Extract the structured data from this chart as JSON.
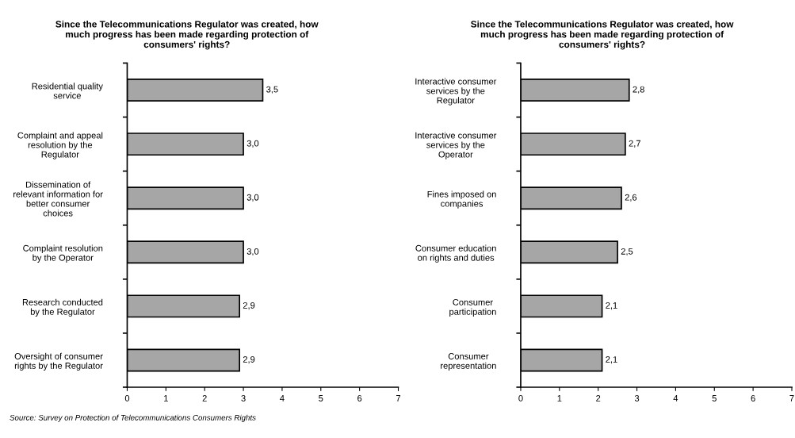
{
  "chart_data": [
    {
      "type": "bar",
      "orientation": "horizontal",
      "title": "Since the Telecommunications Regulator was created, how\nmuch progress has been made regarding protection of\nconsumers' rights?",
      "categories": [
        "Residential quality\nservice",
        "Complaint and appeal\nresolution by the\nRegulator",
        "Dissemination of\nrelevant information for\nbetter consumer\nchoices",
        "Complaint resolution\nby the Operator",
        "Research conducted\nby the Regulator",
        "Oversight of consumer\nrights by the Regulator"
      ],
      "values": [
        3.5,
        3.0,
        3.0,
        3.0,
        2.9,
        2.9
      ],
      "value_labels": [
        "3,5",
        "3,0",
        "3,0",
        "3,0",
        "2,9",
        "2,9"
      ],
      "color": "#a6a6a6",
      "xlim": [
        0,
        7
      ],
      "xticks": [
        0,
        1,
        2,
        3,
        4,
        5,
        6,
        7
      ],
      "grid": false,
      "legend": false,
      "annotations": [
        "Source: Survey on Protection of Telecommunications Consumers Rights"
      ]
    },
    {
      "type": "bar",
      "orientation": "horizontal",
      "title": "Since the Telecommunications Regulator was created, how\nmuch progress has been made regarding protection of\nconsumers' rights?",
      "categories": [
        "Interactive consumer\nservices by the\nRegulator",
        "Interactive consumer\nservices by the\nOperator",
        "Fines imposed on\ncompanies",
        "Consumer education\non rights and duties",
        "Consumer\nparticipation",
        "Consumer\nrepresentation"
      ],
      "values": [
        2.8,
        2.7,
        2.6,
        2.5,
        2.1,
        2.1
      ],
      "value_labels": [
        "2,8",
        "2,7",
        "2,6",
        "2,5",
        "2,1",
        "2,1"
      ],
      "color": "#a6a6a6",
      "xlim": [
        0,
        7
      ],
      "xticks": [
        0,
        1,
        2,
        3,
        4,
        5,
        6,
        7
      ],
      "grid": false,
      "legend": false
    }
  ]
}
